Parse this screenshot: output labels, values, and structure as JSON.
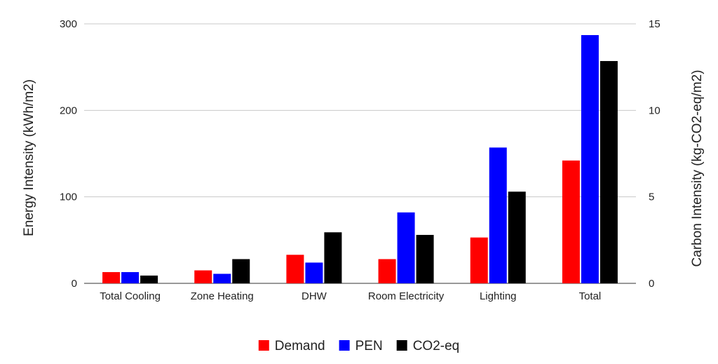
{
  "chart_data": {
    "type": "bar",
    "title": "",
    "categories": [
      "Total Cooling",
      "Zone Heating",
      "DHW",
      "Room Electricity",
      "Lighting",
      "Total"
    ],
    "series": [
      {
        "name": "Demand",
        "axis": "left",
        "color": "#ff0000",
        "values": [
          13,
          15,
          33,
          28,
          53,
          142
        ]
      },
      {
        "name": "PEN",
        "axis": "left",
        "color": "#0000ff",
        "values": [
          13,
          11,
          24,
          82,
          157,
          287
        ]
      },
      {
        "name": "CO2-eq",
        "axis": "right",
        "color": "#000000",
        "values": [
          0.45,
          1.4,
          2.95,
          2.8,
          5.3,
          12.85
        ]
      }
    ],
    "ylabel": "Energy Intensity (kWh/m2)",
    "ylabel_right": "Carbon Intensity (kg-CO2-eq/m2)",
    "ylim": [
      0,
      300
    ],
    "ylim_right": [
      0,
      15
    ],
    "yticks": [
      "0",
      "100",
      "200",
      "300"
    ],
    "yticks_right": [
      "0",
      "5",
      "10",
      "15"
    ],
    "grid": true,
    "legend_position": "bottom"
  }
}
